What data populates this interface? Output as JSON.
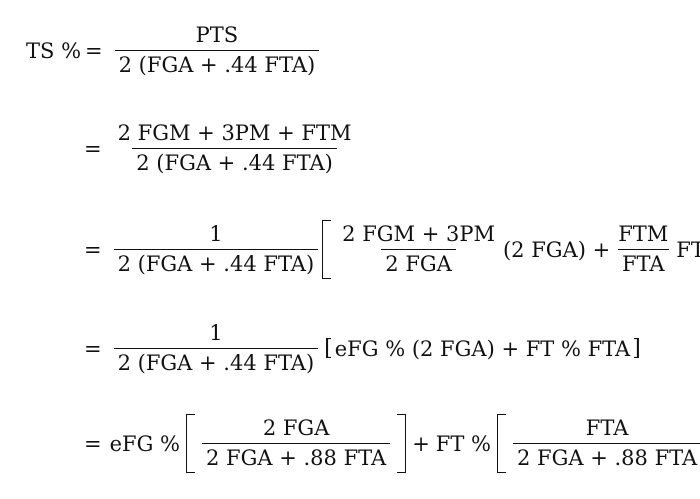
{
  "line1": {
    "lhs": "TS %",
    "eq": "=",
    "num": "PTS",
    "den": "2 (FGA + .44 FTA)"
  },
  "line2": {
    "eq": "=",
    "num": "2 FGM + 3PM + FTM",
    "den": "2 (FGA + .44 FTA)"
  },
  "line3": {
    "eq": "=",
    "num": "1",
    "den": "2 (FGA + .44 FTA)",
    "f1_num": "2 FGM + 3PM",
    "f1_den": "2 FGA",
    "mid": "(2 FGA) +",
    "f2_num": "FTM",
    "f2_den": "FTA",
    "tail": "FTA"
  },
  "line4": {
    "eq": "=",
    "num": "1",
    "den": "2 (FGA + .44 FTA)",
    "lbr": "[",
    "expr": "eFG % (2 FGA) + FT % FTA",
    "rbr": "]"
  },
  "line5": {
    "eq": "=",
    "term1": "eFG %",
    "f1_num": "2 FGA",
    "f1_den": "2 FGA + .88 FTA",
    "plus": "+",
    "term2": "FT %",
    "f2_num": "FTA",
    "f2_den": "2 FGA + .88 FTA"
  }
}
